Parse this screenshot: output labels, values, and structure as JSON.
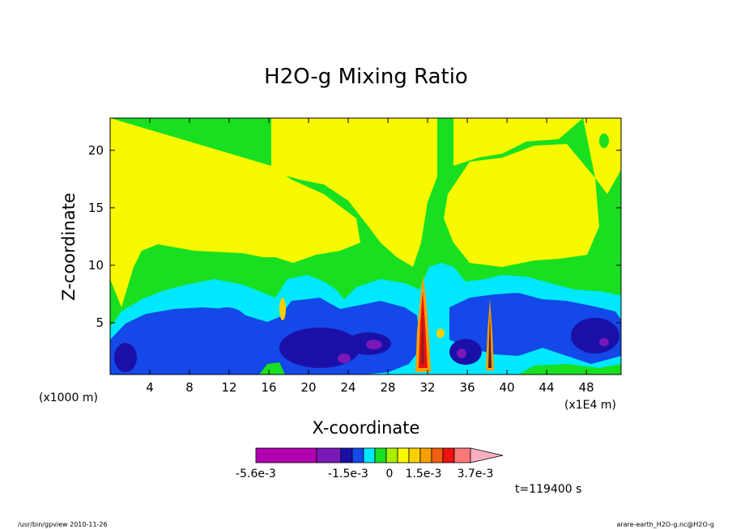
{
  "chart_data": {
    "type": "heatmap",
    "title": "H2O-g Mixing Ratio",
    "xlabel": "X-coordinate",
    "ylabel": "Z-coordinate",
    "x_unit_label": "(x1000 m)",
    "x_multiplier_label": "(x1E4 m)",
    "xlim": [
      0,
      51.5
    ],
    "ylim": [
      0.5,
      22.8
    ],
    "x_ticks": [
      4,
      8,
      12,
      16,
      20,
      24,
      28,
      32,
      36,
      40,
      44,
      48
    ],
    "y_ticks": [
      5,
      10,
      15,
      20
    ],
    "colorbar": {
      "colors": [
        "#b000b0",
        "#7a18b8",
        "#1a10a8",
        "#1448e8",
        "#00e8ff",
        "#18e020",
        "#a8f000",
        "#f8f800",
        "#f8d000",
        "#f8a000",
        "#f06010",
        "#f01010",
        "#f87878",
        "#f8b0c0"
      ],
      "tick_labels": [
        "-5.6e-3",
        "-1.5e-3",
        "0",
        "1.5e-3",
        "3.7e-3"
      ]
    },
    "time_label": "t=119400 s"
  },
  "footer": {
    "left": "/usr/bin/gpview   2010-11-26",
    "right": "arare-earth_H2O-g.nc@H2O-g"
  }
}
